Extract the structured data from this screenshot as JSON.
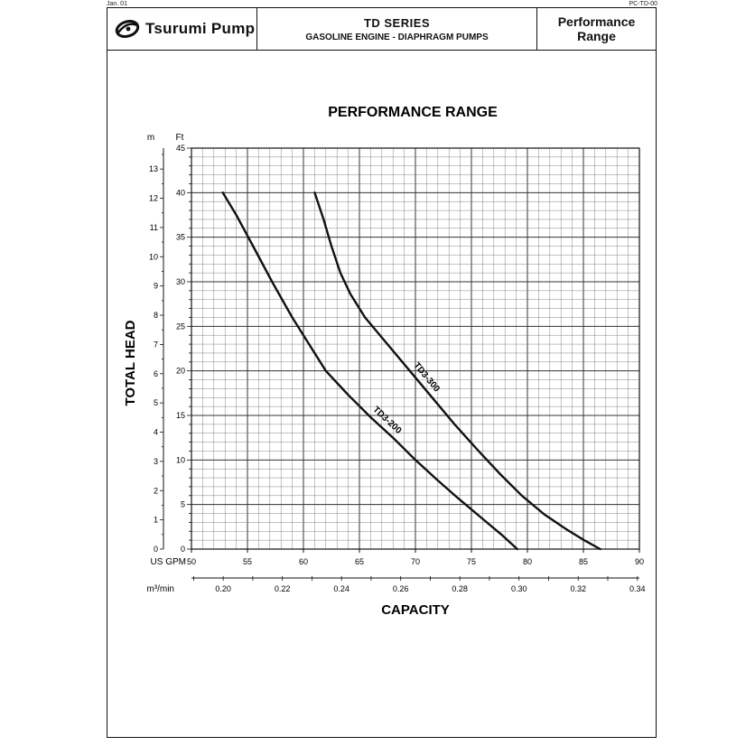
{
  "corner": {
    "left": "Jan. 01",
    "right": "PC-TD-00"
  },
  "header": {
    "brand": "Tsurumi Pump",
    "series_title": "TD SERIES",
    "series_subtitle": "GASOLINE ENGINE - DIAPHRAGM PUMPS",
    "range_line1": "Performance",
    "range_line2": "Range"
  },
  "chart_data": {
    "type": "line",
    "title": "PERFORMANCE RANGE",
    "xlabel": "CAPACITY",
    "ylabel": "TOTAL HEAD",
    "x_unit_primary": "US GPM",
    "x_unit_secondary": "m³/min",
    "y_unit_left": "m",
    "y_unit_right": "Ft",
    "xlim": [
      50,
      90
    ],
    "ylim": [
      0,
      45
    ],
    "x_ticks": [
      "50",
      "55",
      "60",
      "65",
      "70",
      "75",
      "80",
      "85",
      "90"
    ],
    "x_ticks_m3": [
      {
        "v": 0.2,
        "label": "0.20"
      },
      {
        "v": 0.22,
        "label": "0.22"
      },
      {
        "v": 0.24,
        "label": "0.24"
      },
      {
        "v": 0.26,
        "label": "0.26"
      },
      {
        "v": 0.28,
        "label": "0.28"
      },
      {
        "v": 0.3,
        "label": "0.30"
      },
      {
        "v": 0.32,
        "label": "0.32"
      },
      {
        "v": 0.34,
        "label": "0.34"
      }
    ],
    "y_ticks_ft": [
      "0",
      "5",
      "10",
      "15",
      "20",
      "25",
      "30",
      "35",
      "40",
      "45"
    ],
    "y_ticks_m": [
      "0",
      "1",
      "2",
      "3",
      "4",
      "5",
      "6",
      "7",
      "8",
      "9",
      "10",
      "11",
      "12",
      "13"
    ],
    "gpm_per_m3min": 264.17,
    "ft_per_m": 3.2808,
    "grid": true,
    "series": [
      {
        "name": "TD3-200",
        "points": [
          [
            52.8,
            40
          ],
          [
            54.0,
            37.5
          ],
          [
            55.5,
            34
          ],
          [
            57.2,
            30
          ],
          [
            59.0,
            26
          ],
          [
            60.5,
            23
          ],
          [
            62.0,
            20
          ],
          [
            64.0,
            17.3
          ],
          [
            66.0,
            14.8
          ],
          [
            68.0,
            12.5
          ],
          [
            70.0,
            10
          ],
          [
            72.0,
            7.7
          ],
          [
            74.0,
            5.5
          ],
          [
            76.0,
            3.4
          ],
          [
            77.8,
            1.5
          ],
          [
            79.1,
            0
          ]
        ]
      },
      {
        "name": "TD3-300",
        "points": [
          [
            61.0,
            40
          ],
          [
            61.8,
            37
          ],
          [
            62.5,
            34
          ],
          [
            63.3,
            31
          ],
          [
            64.2,
            28.6
          ],
          [
            65.5,
            26
          ],
          [
            67.5,
            23
          ],
          [
            69.5,
            20
          ],
          [
            71.5,
            17
          ],
          [
            73.5,
            14
          ],
          [
            75.5,
            11.2
          ],
          [
            77.5,
            8.5
          ],
          [
            79.5,
            6.0
          ],
          [
            81.5,
            3.9
          ],
          [
            83.5,
            2.2
          ],
          [
            85.2,
            0.9
          ],
          [
            86.5,
            0
          ]
        ]
      }
    ]
  }
}
